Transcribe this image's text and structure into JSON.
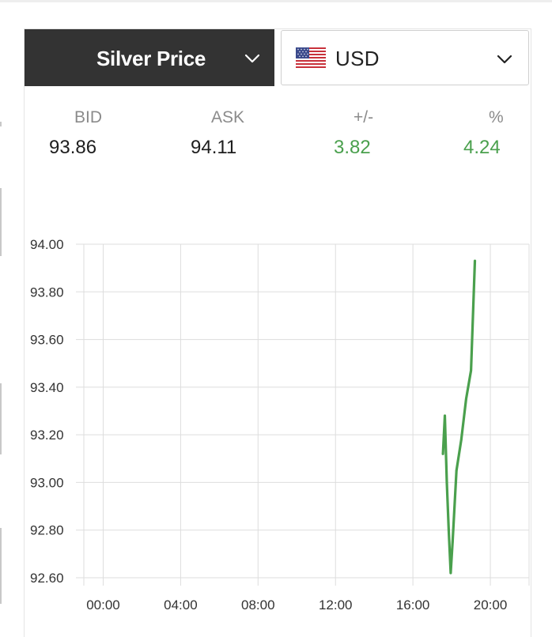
{
  "selector": {
    "metal_label": "Silver Price",
    "currency_label": "USD",
    "currency_flag": "us-flag-icon"
  },
  "stats": {
    "headers": [
      "BID",
      "ASK",
      "+/-",
      "%"
    ],
    "bid": "93.86",
    "ask": "94.11",
    "change": "3.82",
    "change_percent": "4.24"
  },
  "colors": {
    "header_bg": "#333333",
    "positive": "#4aa04d",
    "line": "#4aa04d",
    "grid": "#dddddd"
  },
  "chart_data": {
    "type": "line",
    "title": "",
    "xlabel": "",
    "ylabel": "",
    "x_ticks": [
      "00:00",
      "04:00",
      "08:00",
      "12:00",
      "16:00",
      "20:00"
    ],
    "y_ticks": [
      "94.00",
      "93.80",
      "93.60",
      "93.40",
      "93.20",
      "93.00",
      "92.80",
      "92.60"
    ],
    "xlim_hours": [
      -1,
      22
    ],
    "ylim": [
      92.6,
      94.0
    ],
    "grid": true,
    "series": [
      {
        "x_hours": [
          17.55,
          17.65,
          17.75,
          17.85,
          17.95,
          18.05,
          18.25,
          18.5,
          18.75,
          19.0,
          19.2
        ],
        "values": [
          93.12,
          93.28,
          93.0,
          92.8,
          92.62,
          92.75,
          93.05,
          93.18,
          93.35,
          93.47,
          93.93
        ]
      }
    ]
  }
}
